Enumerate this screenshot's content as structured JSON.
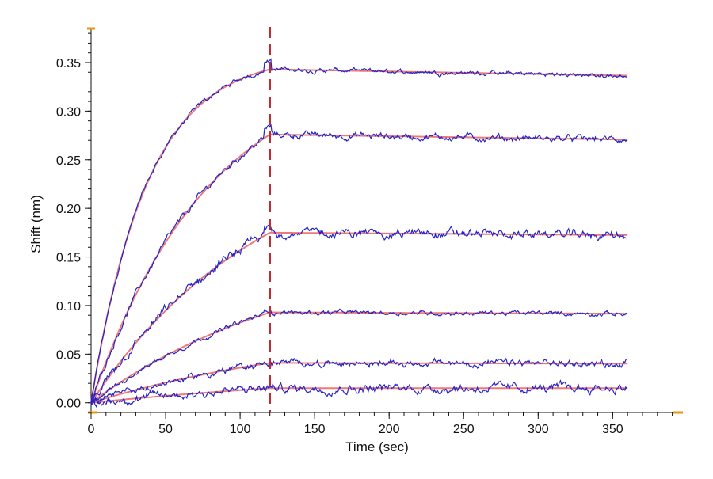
{
  "chart_data": {
    "type": "line",
    "title": "",
    "xlabel": "Time (sec)",
    "ylabel": "Shift (nm)",
    "xlim": [
      0,
      395
    ],
    "ylim": [
      -0.01,
      0.385
    ],
    "x_ticks": [
      0,
      50,
      100,
      150,
      200,
      250,
      300,
      350
    ],
    "x_tick_labels": [
      "0",
      "50",
      "100",
      "150",
      "200",
      "250",
      "300",
      "350"
    ],
    "y_ticks": [
      0.0,
      0.05,
      0.1,
      0.15,
      0.2,
      0.25,
      0.3,
      0.35
    ],
    "y_tick_labels": [
      "0.00",
      "0.05",
      "0.10",
      "0.15",
      "0.20",
      "0.25",
      "0.30",
      "0.35"
    ],
    "grid": false,
    "legend": "none",
    "phase_boundary_x": 120,
    "colors": {
      "measured": "#2323c8",
      "fit": "#f07878",
      "boundary": "#c0282d",
      "axis": "#111111",
      "axis_end_marker": "#e8960f"
    },
    "association_end": 120,
    "dissociation_end": 360,
    "series": [
      {
        "plateau": 0.343,
        "k_on": 0.0265,
        "k_off": 8e-05
      },
      {
        "plateau": 0.276,
        "k_on": 0.0125,
        "k_off": 8e-05
      },
      {
        "plateau": 0.175,
        "k_on": 0.0085,
        "k_off": 6e-05
      },
      {
        "plateau": 0.093,
        "k_on": 0.007,
        "k_off": 6e-05
      },
      {
        "plateau": 0.041,
        "k_on": 0.006,
        "k_off": 8e-05
      },
      {
        "plateau": 0.015,
        "k_on": 0.004,
        "k_off": 0.0
      }
    ]
  }
}
